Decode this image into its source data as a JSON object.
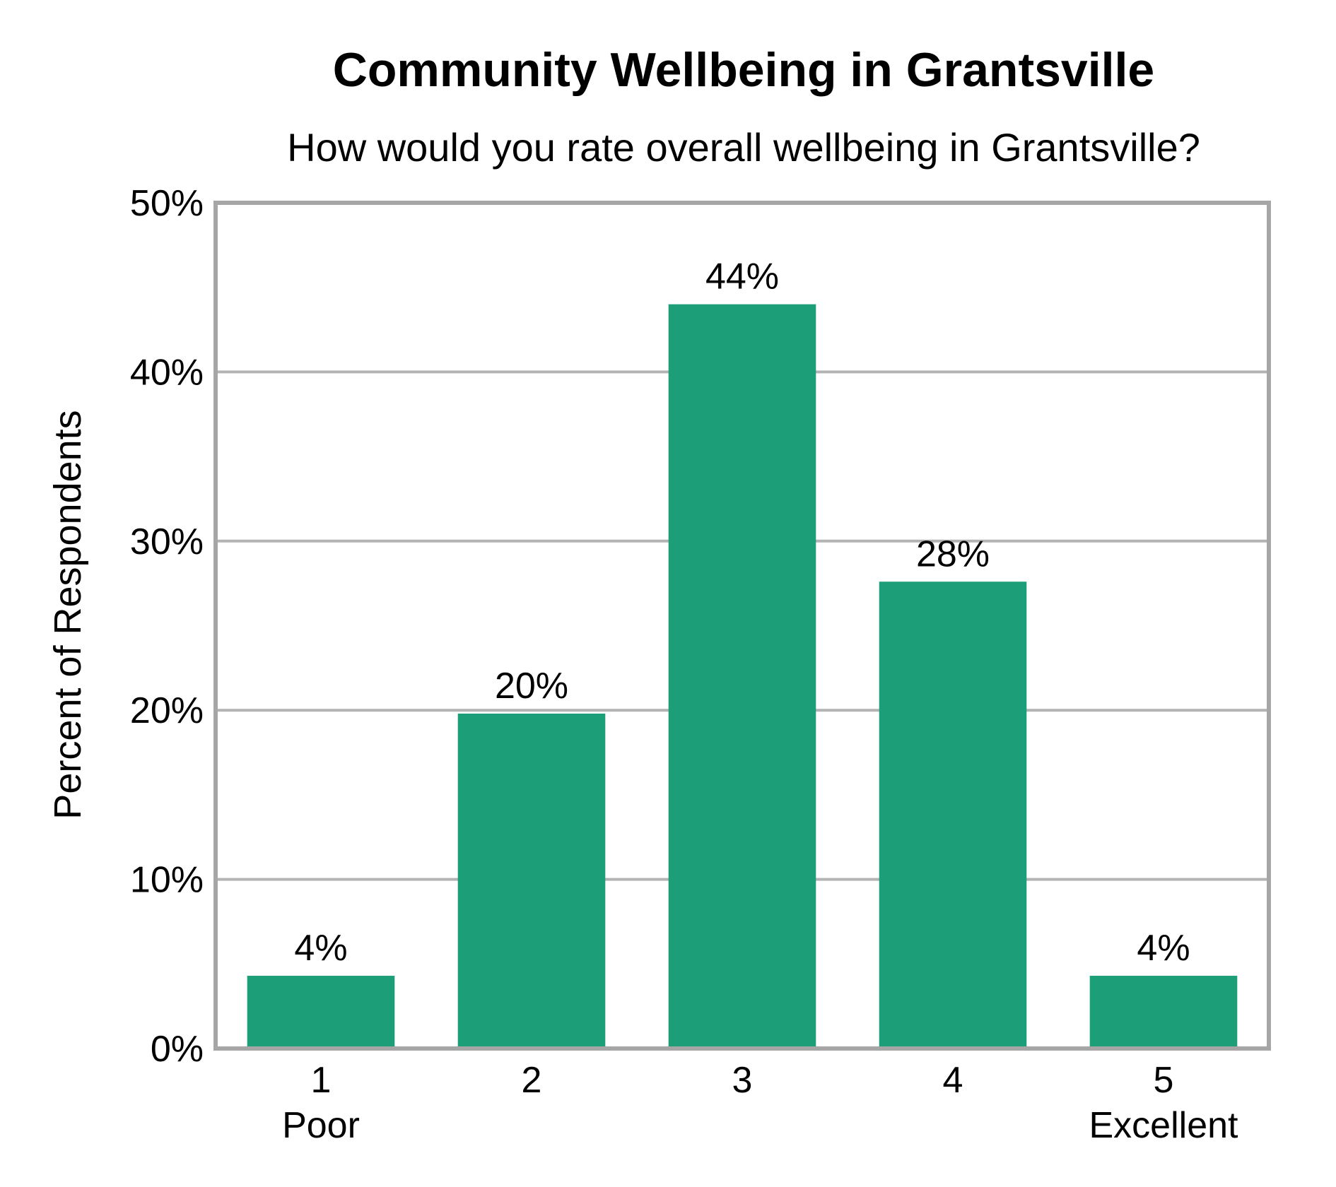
{
  "chart_data": {
    "type": "bar",
    "title": "Community Wellbeing in Grantsville",
    "subtitle": "How would you rate overall wellbeing in Grantsville?",
    "ylabel": "Percent of Respondents",
    "xlabel": "",
    "categories": [
      "1",
      "2",
      "3",
      "4",
      "5"
    ],
    "category_sublabels": [
      "Poor",
      "",
      "",
      "",
      "Excellent"
    ],
    "values": [
      4.3,
      19.8,
      44.0,
      27.6,
      4.3
    ],
    "data_labels": [
      "4%",
      "20%",
      "44%",
      "28%",
      "4%"
    ],
    "ylim": [
      0,
      50
    ],
    "yticks": [
      0,
      10,
      20,
      30,
      40,
      50
    ],
    "ytick_labels": [
      "0%",
      "10%",
      "20%",
      "30%",
      "40%",
      "50%"
    ],
    "grid": true,
    "colors": {
      "bar": "#1c9e78",
      "grid": "#b3b3b3",
      "frame": "#a6a6a6"
    }
  }
}
